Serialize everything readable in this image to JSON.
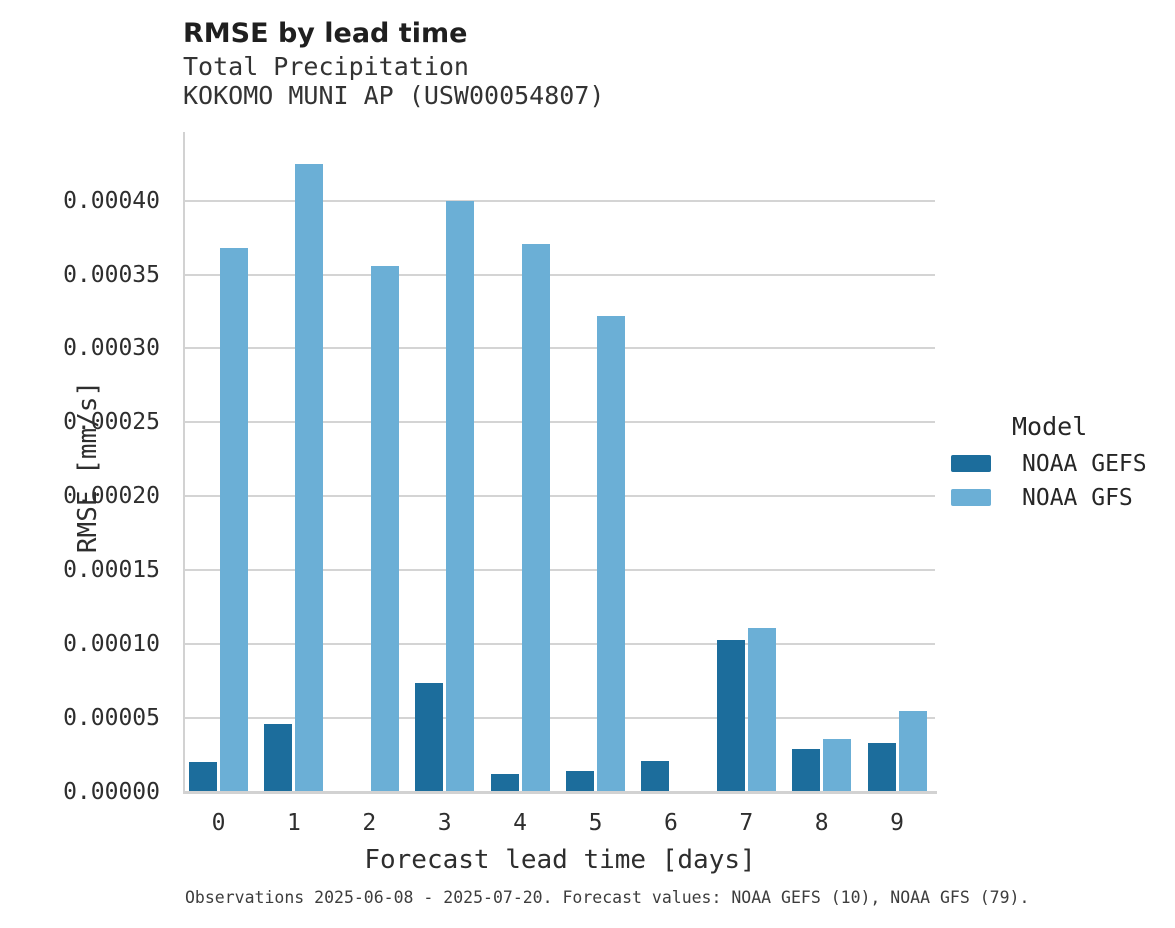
{
  "chart_data": {
    "type": "bar",
    "title": "RMSE by lead time",
    "subtitle_line1": "Total Precipitation",
    "subtitle_line2": "KOKOMO MUNI AP (USW00054807)",
    "xlabel": "Forecast lead time [days]",
    "ylabel": "RMSE [mm/s]",
    "categories": [
      "0",
      "1",
      "2",
      "3",
      "4",
      "5",
      "6",
      "7",
      "8",
      "9"
    ],
    "series": [
      {
        "name": "NOAA GEFS",
        "color": "#1c6d9c",
        "values": [
          2e-05,
          4.6e-05,
          null,
          7.4e-05,
          1.2e-05,
          1.4e-05,
          2.1e-05,
          0.000103,
          2.9e-05,
          3.3e-05
        ]
      },
      {
        "name": "NOAA GFS",
        "color": "#6bafd6",
        "values": [
          0.000368,
          0.000425,
          0.000356,
          0.0004,
          0.000371,
          0.000322,
          null,
          0.000111,
          3.6e-05,
          5.5e-05
        ]
      }
    ],
    "y_ticks": {
      "values": [
        0.0,
        5e-05,
        0.0001,
        0.00015,
        0.0002,
        0.00025,
        0.0003,
        0.00035,
        0.0004
      ],
      "labels": [
        "0.00000",
        "0.00005",
        "0.00010",
        "0.00015",
        "0.00020",
        "0.00025",
        "0.00030",
        "0.00035",
        "0.00040"
      ]
    },
    "ylim": [
      0,
      0.000441
    ],
    "grid": "horizontal",
    "legend_title": "Model",
    "legend_position": "right",
    "caption": "Observations 2025-06-08 - 2025-07-20. Forecast values: NOAA GEFS (10), NOAA GFS (79)."
  }
}
